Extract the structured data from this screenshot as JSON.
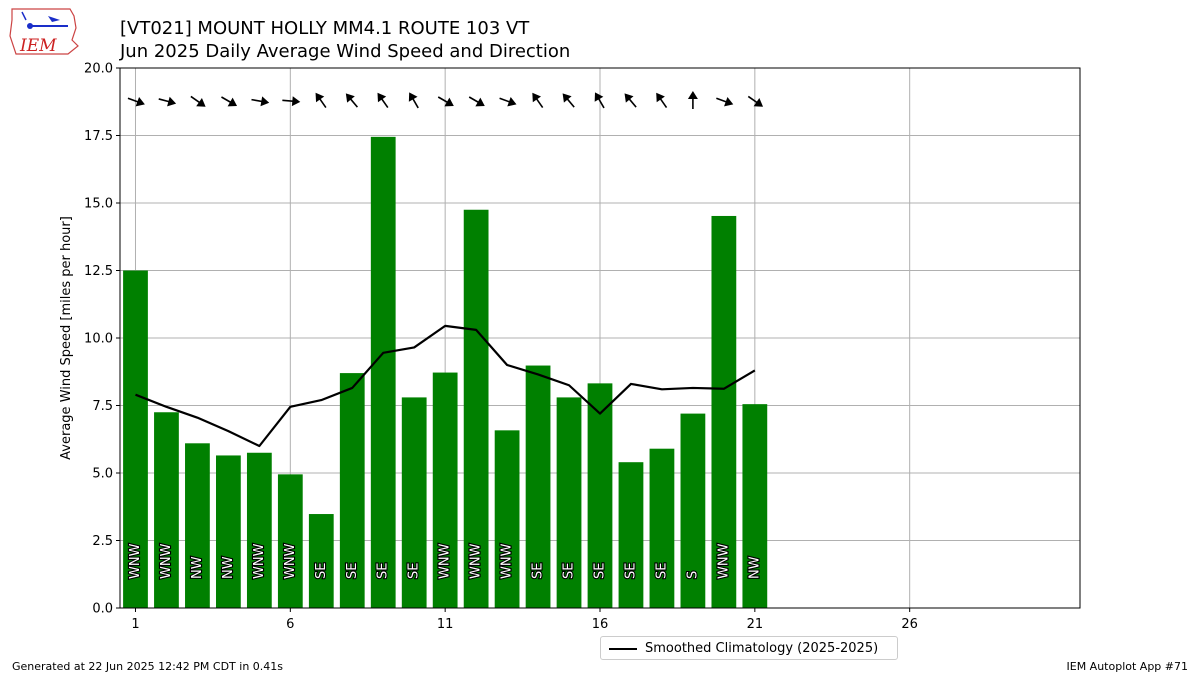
{
  "header": {
    "title": "[VT021] MOUNT HOLLY MM4.1 ROUTE 103  VT",
    "subtitle": "Jun 2025 Daily Average Wind Speed and Direction"
  },
  "logo": {
    "text": "IEM",
    "icon": "iem-state-logo-icon"
  },
  "footer": {
    "generated": "Generated at 22 Jun 2025 12:42 PM CDT in 0.41s",
    "app": "IEM Autoplot App #71"
  },
  "legend": {
    "label": "Smoothed Climatology (2025-2025)"
  },
  "colors": {
    "bar": "#008000",
    "line": "#000000",
    "grid": "#b0b0b0",
    "arrow": "#000000"
  },
  "chart_data": {
    "type": "bar",
    "ylabel": "Average Wind Speed [miles per hour]",
    "xlabel": "",
    "xlim": [
      0.5,
      31.5
    ],
    "ylim": [
      0,
      20
    ],
    "xticks": [
      1,
      6,
      11,
      16,
      21,
      26
    ],
    "yticks": [
      0.0,
      2.5,
      5.0,
      7.5,
      10.0,
      12.5,
      15.0,
      17.5,
      20.0
    ],
    "ytick_labels": [
      "0.0",
      "2.5",
      "5.0",
      "7.5",
      "10.0",
      "12.5",
      "15.0",
      "17.5",
      "20.0"
    ],
    "grid": true,
    "legend_position": "bottom-center",
    "days": [
      1,
      2,
      3,
      4,
      5,
      6,
      7,
      8,
      9,
      10,
      11,
      12,
      13,
      14,
      15,
      16,
      17,
      18,
      19,
      20,
      21
    ],
    "speed": [
      12.5,
      7.25,
      6.1,
      5.65,
      5.75,
      4.95,
      3.48,
      8.7,
      17.45,
      7.8,
      8.72,
      14.75,
      6.58,
      8.98,
      7.8,
      8.32,
      5.4,
      5.9,
      7.2,
      14.52,
      7.55
    ],
    "direction_labels": [
      "WNW",
      "WNW",
      "NW",
      "NW",
      "WNW",
      "WNW",
      "SE",
      "SE",
      "SE",
      "SE",
      "WNW",
      "WNW",
      "WNW",
      "SE",
      "SE",
      "SE",
      "SE",
      "SE",
      "S",
      "WNW",
      "NW"
    ],
    "arrow_bearing_deg": [
      110,
      105,
      125,
      120,
      100,
      95,
      325,
      320,
      325,
      330,
      120,
      120,
      110,
      325,
      320,
      330,
      320,
      325,
      0,
      110,
      125
    ],
    "climatology": {
      "name": "Smoothed Climatology (2025-2025)",
      "x": [
        1,
        2,
        3,
        4,
        5,
        6,
        7,
        8,
        9,
        10,
        11,
        12,
        13,
        14,
        15,
        16,
        17,
        18,
        19,
        20,
        21
      ],
      "values": [
        7.9,
        7.45,
        7.05,
        6.55,
        6.0,
        7.45,
        7.7,
        8.15,
        9.45,
        9.65,
        10.45,
        10.3,
        9.0,
        8.65,
        8.25,
        7.2,
        8.3,
        8.1,
        8.15,
        8.12,
        8.8
      ]
    }
  }
}
